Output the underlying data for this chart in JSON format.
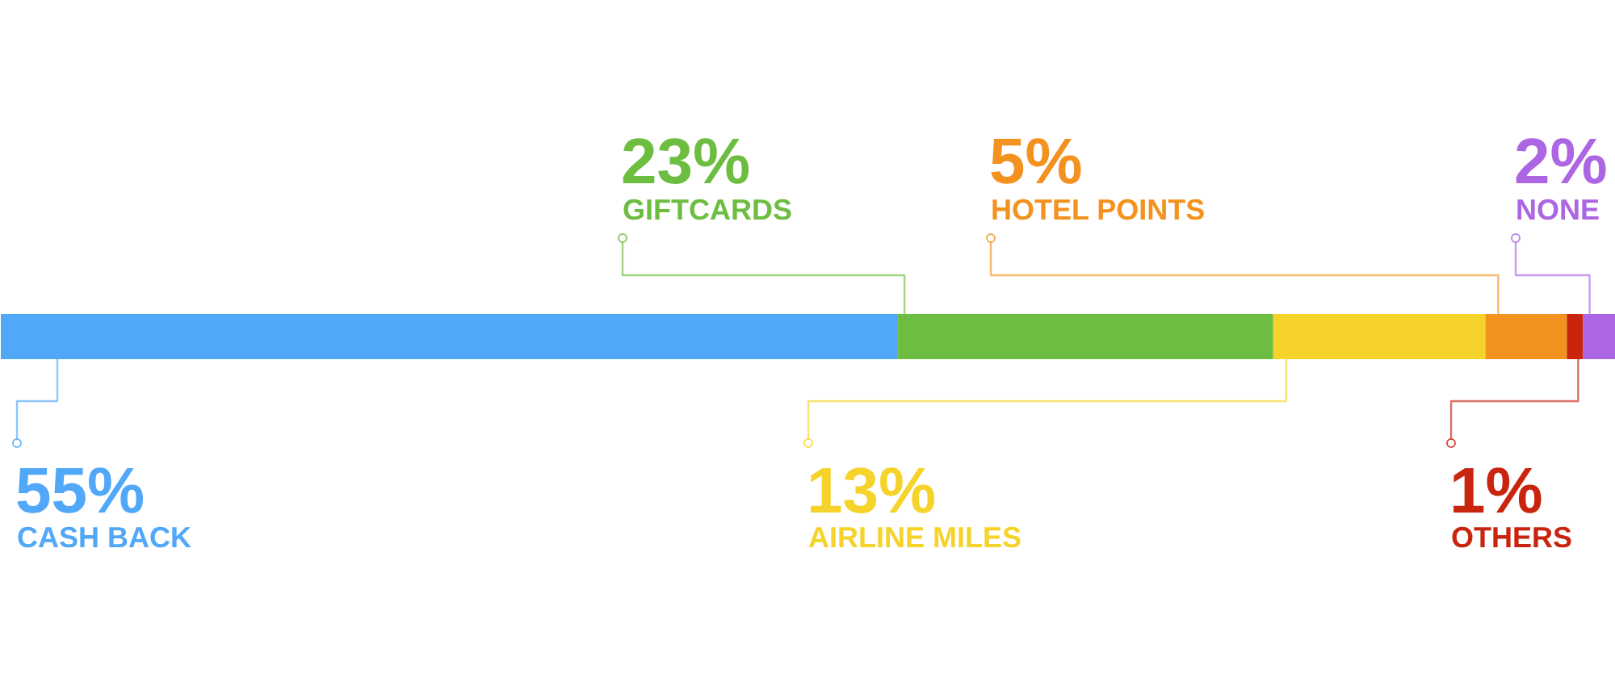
{
  "chart_data": {
    "type": "bar",
    "orientation": "horizontal",
    "stacked": true,
    "categories": [
      null
    ],
    "tick_labels": false,
    "legend": false,
    "series": [
      {
        "name": "CASH BACK",
        "color": "#52a8f8",
        "values": [
          55
        ],
        "value_labels": [
          "55%"
        ]
      },
      {
        "name": "GIFTCARDS",
        "color": "#6dbd41",
        "values": [
          23
        ],
        "value_labels": [
          "23%"
        ]
      },
      {
        "name": "AIRLINE MILES",
        "color": "#f6d32a",
        "values": [
          13
        ],
        "value_labels": [
          "13%"
        ]
      },
      {
        "name": "HOTEL POINTS",
        "color": "#f4921f",
        "values": [
          5
        ],
        "value_labels": [
          "5%"
        ]
      },
      {
        "name": "OTHERS",
        "color": "#c9240e",
        "values": [
          1
        ],
        "value_labels": [
          "1%"
        ]
      },
      {
        "name": "NONE",
        "color": "#ad66e3",
        "values": [
          2
        ],
        "value_labels": [
          "2%"
        ]
      }
    ]
  }
}
